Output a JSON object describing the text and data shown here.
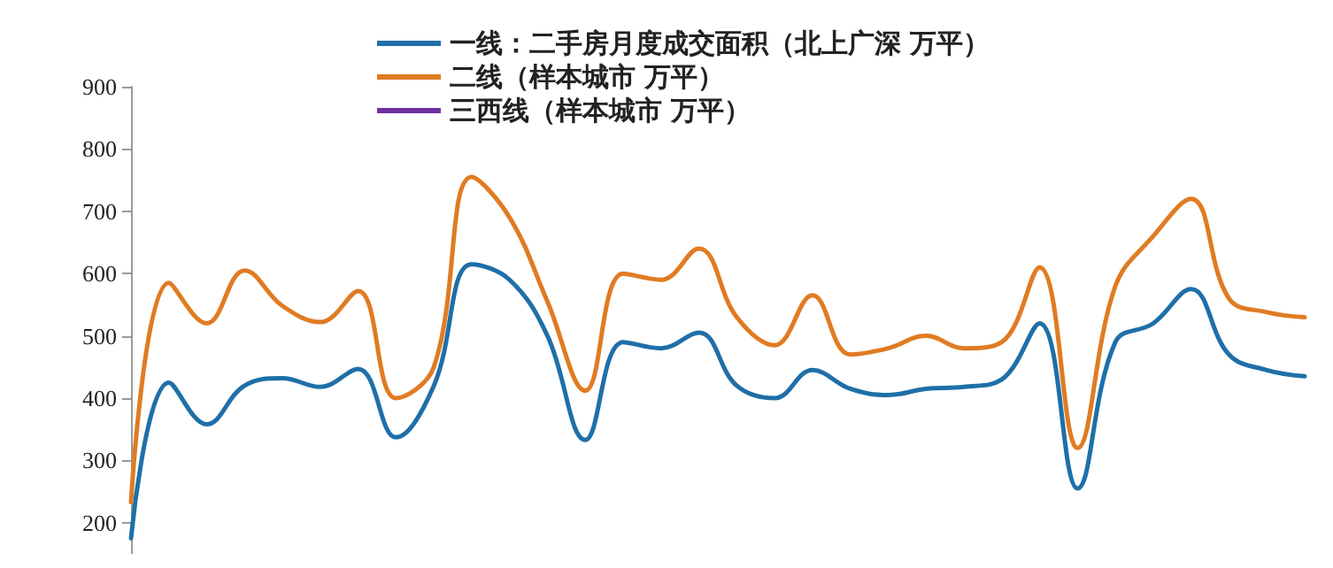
{
  "chart_data": {
    "type": "line",
    "categories": [
      null,
      null,
      null,
      null,
      null,
      null,
      null,
      null,
      null,
      null,
      null,
      null,
      null,
      null,
      null,
      null,
      null,
      null,
      null,
      null,
      null,
      null,
      null,
      null,
      null,
      null,
      null,
      null,
      null,
      null,
      null,
      null
    ],
    "series": [
      {
        "name": "一线：二手房月度成交面积（北上广深 万平）",
        "color": "#1f6fa8",
        "values": [
          175,
          425,
          358,
          420,
          432,
          418,
          447,
          337,
          420,
          615,
          590,
          500,
          333,
          490,
          480,
          505,
          420,
          400,
          445,
          415,
          405,
          415,
          418,
          430,
          520,
          255,
          490,
          520,
          575,
          470,
          445,
          435
        ]
      },
      {
        "name": "二线（样本城市 万平）",
        "color": "#e07b22",
        "values": [
          233,
          585,
          520,
          605,
          548,
          522,
          572,
          400,
          450,
          755,
          690,
          555,
          412,
          600,
          590,
          640,
          530,
          485,
          565,
          470,
          480,
          500,
          480,
          490,
          610,
          320,
          580,
          660,
          720,
          560,
          538,
          530
        ]
      },
      {
        "name": "三西线（样本城市 万平）",
        "color": "#7030a0",
        "values": [
          null,
          null,
          null,
          null,
          null,
          null,
          null,
          null,
          null,
          null,
          null,
          null,
          null,
          null,
          null,
          null,
          null,
          null,
          null,
          null,
          null,
          null,
          null,
          null,
          null,
          null,
          null,
          null,
          null,
          null,
          null,
          null
        ]
      }
    ],
    "ylim": [
      150,
      900
    ],
    "yticks": [
      200,
      300,
      400,
      500,
      600,
      700,
      800,
      900
    ],
    "grid": false,
    "legend": "top",
    "tick_labels": "y",
    "marker": "none",
    "line_style": "solid"
  }
}
